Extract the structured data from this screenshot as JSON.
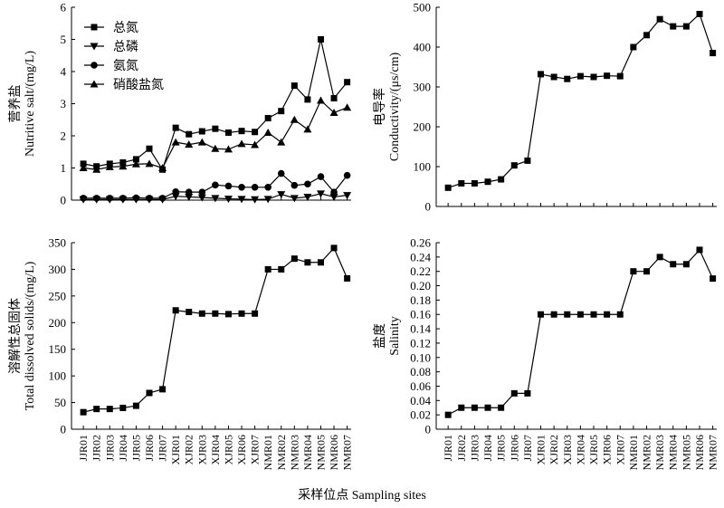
{
  "figure": {
    "xlabel": "采样位点 Sampling sites"
  },
  "chart_data": [
    {
      "type": "line",
      "ylabel_cn": "营养盐",
      "ylabel_en": "Nutritive salt/(mg/L)",
      "ylim": [
        0,
        6
      ],
      "yticks": [
        "0",
        "1",
        "2",
        "3",
        "4",
        "5",
        "6"
      ],
      "legend_position": "top-left",
      "categories": [
        "JJR01",
        "JJR02",
        "JJR03",
        "JJR04",
        "JJR05",
        "JJR06",
        "JJR07",
        "XJR01",
        "XJR02",
        "XJR03",
        "XJR04",
        "XJR05",
        "XJR06",
        "XJR07",
        "NMR01",
        "NMR02",
        "NMR03",
        "NMR04",
        "NMR05",
        "NMR06",
        "NMR07"
      ],
      "series": [
        {
          "name": "总氮",
          "marker": "square",
          "values": [
            1.13,
            1.05,
            1.13,
            1.17,
            1.27,
            1.6,
            0.95,
            2.25,
            2.05,
            2.14,
            2.22,
            2.1,
            2.15,
            2.12,
            2.55,
            2.77,
            3.56,
            3.13,
            5.0,
            3.17,
            3.67
          ]
        },
        {
          "name": "总磷",
          "marker": "triangle-down",
          "values": [
            0.02,
            0.02,
            0.02,
            0.02,
            0.02,
            0.02,
            0.02,
            0.12,
            0.1,
            0.08,
            0.06,
            0.04,
            0.03,
            0.02,
            0.03,
            0.18,
            0.06,
            0.1,
            0.2,
            0.1,
            0.15
          ]
        },
        {
          "name": "氨氮",
          "marker": "circle",
          "values": [
            0.06,
            0.06,
            0.06,
            0.06,
            0.07,
            0.06,
            0.06,
            0.26,
            0.25,
            0.25,
            0.47,
            0.44,
            0.4,
            0.4,
            0.4,
            0.83,
            0.46,
            0.5,
            0.73,
            0.25,
            0.77
          ]
        },
        {
          "name": "硝酸盐氮",
          "marker": "triangle-up",
          "values": [
            1.0,
            0.95,
            1.03,
            1.05,
            1.12,
            1.13,
            1.0,
            1.8,
            1.73,
            1.8,
            1.6,
            1.58,
            1.75,
            1.72,
            2.1,
            1.8,
            2.5,
            2.2,
            3.1,
            2.72,
            2.88
          ]
        }
      ]
    },
    {
      "type": "line",
      "ylabel_cn": "电导率",
      "ylabel_en": "Conductivity/(μs/cm)",
      "ylim": [
        0,
        500
      ],
      "yticks": [
        "0",
        "100",
        "200",
        "300",
        "400",
        "500"
      ],
      "categories": [
        "JJR01",
        "JJR02",
        "JJR03",
        "JJR04",
        "JJR05",
        "JJR06",
        "JJR07",
        "XJR01",
        "XJR02",
        "XJR03",
        "XJR04",
        "XJR05",
        "XJR06",
        "XJR07",
        "NMR01",
        "NMR02",
        "NMR03",
        "NMR04",
        "NMR05",
        "NMR06",
        "NMR07"
      ],
      "series": [
        {
          "marker": "square",
          "values": [
            47,
            58,
            58,
            62,
            68,
            103,
            115,
            332,
            325,
            320,
            327,
            325,
            328,
            327,
            400,
            430,
            470,
            452,
            452,
            483,
            385
          ]
        }
      ]
    },
    {
      "type": "line",
      "ylabel_cn": "溶解性总固体",
      "ylabel_en": "Total dissolved solids/(mg/L)",
      "ylim": [
        0,
        350
      ],
      "yticks": [
        "0",
        "50",
        "100",
        "150",
        "200",
        "250",
        "300",
        "350"
      ],
      "categories": [
        "JJR01",
        "JJR02",
        "JJR03",
        "JJR04",
        "JJR05",
        "JJR06",
        "JJR07",
        "XJR01",
        "XJR02",
        "XJR03",
        "XJR04",
        "XJR05",
        "XJR06",
        "XJR07",
        "NMR01",
        "NMR02",
        "NMR03",
        "NMR04",
        "NMR05",
        "NMR06",
        "NMR07"
      ],
      "series": [
        {
          "marker": "square",
          "values": [
            32,
            38,
            38,
            40,
            44,
            68,
            75,
            223,
            220,
            217,
            217,
            216,
            217,
            217,
            300,
            300,
            320,
            313,
            313,
            340,
            283
          ]
        }
      ]
    },
    {
      "type": "line",
      "ylabel_cn": "盐度",
      "ylabel_en": "Salinity",
      "ylim": [
        0,
        0.26
      ],
      "yticks": [
        "0",
        "0.02",
        "0.04",
        "0.06",
        "0.08",
        "0.10",
        "0.12",
        "0.14",
        "0.16",
        "0.18",
        "0.20",
        "0.22",
        "0.24",
        "0.26"
      ],
      "categories": [
        "JJR01",
        "JJR02",
        "JJR03",
        "JJR04",
        "JJR05",
        "JJR06",
        "JJR07",
        "XJR01",
        "XJR02",
        "XJR03",
        "XJR04",
        "XJR05",
        "XJR06",
        "XJR07",
        "NMR01",
        "NMR02",
        "NMR03",
        "NMR04",
        "NMR05",
        "NMR06",
        "NMR07"
      ],
      "series": [
        {
          "marker": "square",
          "values": [
            0.02,
            0.03,
            0.03,
            0.03,
            0.03,
            0.05,
            0.05,
            0.16,
            0.16,
            0.16,
            0.16,
            0.16,
            0.16,
            0.16,
            0.22,
            0.22,
            0.24,
            0.23,
            0.23,
            0.25,
            0.21
          ]
        }
      ]
    }
  ]
}
